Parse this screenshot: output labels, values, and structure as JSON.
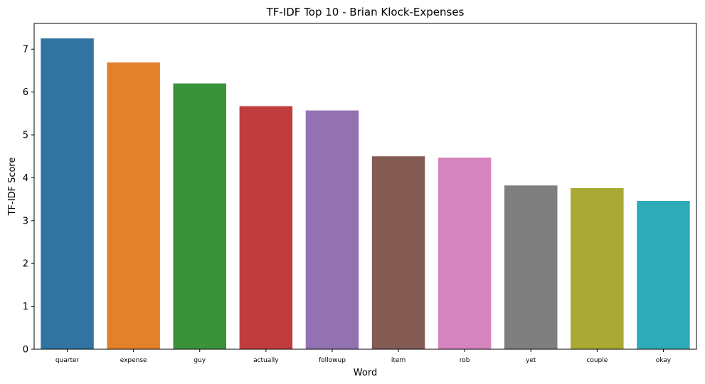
{
  "chart_data": {
    "type": "bar",
    "title": "TF-IDF Top 10 - Brian Klock-Expenses",
    "xlabel": "Word",
    "ylabel": "TF-IDF Score",
    "categories": [
      "quarter",
      "expense",
      "guy",
      "actually",
      "followup",
      "item",
      "rob",
      "yet",
      "couple",
      "okay"
    ],
    "values": [
      7.25,
      6.69,
      6.2,
      5.67,
      5.57,
      4.5,
      4.47,
      3.82,
      3.76,
      3.46
    ],
    "colors": [
      "#3274a1",
      "#e1812c",
      "#3a923a",
      "#c03d3e",
      "#9372b2",
      "#845b53",
      "#d684bd",
      "#7f7f7f",
      "#a9aa35",
      "#2eabb8"
    ],
    "ylim": [
      0,
      7.6
    ],
    "yticks": [
      0,
      1,
      2,
      3,
      4,
      5,
      6,
      7
    ],
    "grid": false,
    "legend": "none"
  }
}
